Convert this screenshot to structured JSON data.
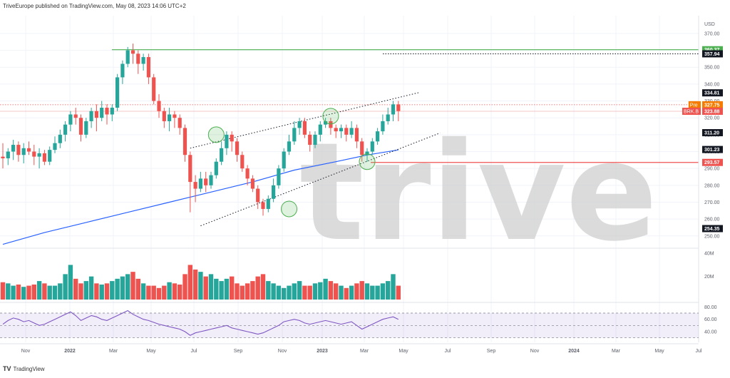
{
  "header": {
    "text": "TriveEurope published on TradingView.com, May 08, 2023 14:06 UTC+2"
  },
  "footer": {
    "logo": "TV",
    "brand": "TradingView"
  },
  "watermark": "trive",
  "chart_data": {
    "type": "candlestick",
    "currency": "USD",
    "symbol": "BRK.B",
    "y_range": [
      244,
      378
    ],
    "y_ticks": [
      370,
      360,
      350,
      340,
      330,
      320,
      310,
      300,
      290,
      280,
      270,
      260,
      250
    ],
    "x_labels": [
      "Nov",
      "2022",
      "Mar",
      "May",
      "Jul",
      "Sep",
      "Nov",
      "2023",
      "Mar",
      "May",
      "Jul",
      "Sep",
      "Nov",
      "2024",
      "Mar",
      "May",
      "Jul"
    ],
    "price_tags": [
      {
        "label": "360.37",
        "value": 360.37,
        "color": "#4caf50"
      },
      {
        "label": "357.94",
        "value": 357.94,
        "color": "#131722"
      },
      {
        "label": "334.81",
        "value": 334.81,
        "color": "#131722"
      },
      {
        "label": "327.75",
        "value": 327.75,
        "color": "#f57c00",
        "prefix": "Pre"
      },
      {
        "label": "323.88",
        "value": 323.88,
        "color": "#ef5350",
        "prefix": "BRK.B"
      },
      {
        "label": "311.20",
        "value": 311.2,
        "color": "#131722"
      },
      {
        "label": "301.23",
        "value": 301.23,
        "color": "#131722"
      },
      {
        "label": "293.57",
        "value": 293.57,
        "color": "#ef5350"
      },
      {
        "label": "254.35",
        "value": 254.35,
        "color": "#131722"
      }
    ],
    "candles": [
      [
        297,
        296,
        305,
        290
      ],
      [
        296,
        300,
        302,
        292
      ],
      [
        300,
        304,
        307,
        295
      ],
      [
        304,
        298,
        306,
        294
      ],
      [
        298,
        302,
        305,
        293
      ],
      [
        302,
        300,
        306,
        298
      ],
      [
        300,
        297,
        304,
        292
      ],
      [
        297,
        299,
        302,
        290
      ],
      [
        299,
        294,
        301,
        292
      ],
      [
        294,
        301,
        303,
        292
      ],
      [
        301,
        305,
        309,
        299
      ],
      [
        305,
        310,
        313,
        302
      ],
      [
        310,
        316,
        318,
        306
      ],
      [
        316,
        322,
        324,
        312
      ],
      [
        322,
        320,
        326,
        316
      ],
      [
        320,
        310,
        322,
        306
      ],
      [
        310,
        318,
        320,
        308
      ],
      [
        318,
        324,
        326,
        314
      ],
      [
        324,
        320,
        328,
        312
      ],
      [
        320,
        326,
        330,
        318
      ],
      [
        326,
        322,
        328,
        316
      ],
      [
        322,
        326,
        328,
        318
      ],
      [
        326,
        344,
        346,
        324
      ],
      [
        344,
        352,
        354,
        340
      ],
      [
        352,
        360,
        362,
        350
      ],
      [
        360,
        358,
        364,
        352
      ],
      [
        358,
        352,
        360,
        346
      ],
      [
        352,
        356,
        358,
        348
      ],
      [
        356,
        344,
        358,
        340
      ],
      [
        344,
        330,
        346,
        328
      ],
      [
        330,
        324,
        334,
        320
      ],
      [
        324,
        318,
        326,
        314
      ],
      [
        318,
        322,
        326,
        312
      ],
      [
        322,
        320,
        324,
        314
      ],
      [
        320,
        314,
        322,
        310
      ],
      [
        314,
        298,
        316,
        294
      ],
      [
        298,
        282,
        300,
        264
      ],
      [
        282,
        278,
        286,
        270
      ],
      [
        278,
        284,
        288,
        276
      ],
      [
        284,
        280,
        288,
        276
      ],
      [
        280,
        286,
        288,
        278
      ],
      [
        286,
        294,
        296,
        284
      ],
      [
        294,
        302,
        306,
        292
      ],
      [
        302,
        310,
        312,
        298
      ],
      [
        310,
        306,
        312,
        300
      ],
      [
        306,
        298,
        308,
        294
      ],
      [
        298,
        290,
        300,
        288
      ],
      [
        290,
        284,
        292,
        280
      ],
      [
        284,
        278,
        286,
        276
      ],
      [
        278,
        270,
        280,
        266
      ],
      [
        270,
        266,
        272,
        262
      ],
      [
        266,
        272,
        274,
        264
      ],
      [
        272,
        280,
        284,
        270
      ],
      [
        280,
        290,
        292,
        278
      ],
      [
        290,
        300,
        302,
        288
      ],
      [
        300,
        306,
        310,
        298
      ],
      [
        306,
        314,
        318,
        304
      ],
      [
        314,
        318,
        320,
        310
      ],
      [
        318,
        310,
        320,
        308
      ],
      [
        310,
        304,
        312,
        300
      ],
      [
        304,
        310,
        312,
        302
      ],
      [
        310,
        316,
        318,
        306
      ],
      [
        316,
        318,
        320,
        314
      ],
      [
        318,
        314,
        320,
        310
      ],
      [
        314,
        312,
        316,
        308
      ],
      [
        312,
        314,
        316,
        308
      ],
      [
        314,
        310,
        316,
        306
      ],
      [
        310,
        314,
        318,
        308
      ],
      [
        314,
        306,
        316,
        302
      ],
      [
        306,
        298,
        308,
        294
      ],
      [
        298,
        300,
        302,
        294
      ],
      [
        300,
        306,
        308,
        298
      ],
      [
        306,
        312,
        314,
        304
      ],
      [
        312,
        318,
        322,
        310
      ],
      [
        318,
        322,
        326,
        316
      ],
      [
        322,
        328,
        330,
        318
      ],
      [
        328,
        324,
        330,
        318
      ]
    ],
    "ma_line": [
      [
        0,
        245
      ],
      [
        8,
        252
      ],
      [
        16,
        258
      ],
      [
        24,
        264
      ],
      [
        32,
        270
      ],
      [
        40,
        276
      ],
      [
        48,
        282
      ],
      [
        56,
        289
      ],
      [
        64,
        294
      ],
      [
        70,
        298
      ],
      [
        76,
        301
      ]
    ],
    "channel_upper": [
      [
        36,
        302
      ],
      [
        80,
        335
      ]
    ],
    "channel_lower": [
      [
        38,
        256
      ],
      [
        84,
        311
      ]
    ],
    "circles": [
      [
        41,
        310
      ],
      [
        55,
        266
      ],
      [
        63,
        321
      ],
      [
        70,
        294
      ]
    ],
    "volume": {
      "label_ticks": [
        "40M",
        "20M"
      ],
      "values": [
        15,
        14,
        12,
        13,
        11,
        12,
        13,
        16,
        14,
        12,
        12,
        14,
        22,
        30,
        18,
        14,
        16,
        20,
        14,
        13,
        14,
        16,
        18,
        20,
        22,
        24,
        18,
        14,
        12,
        12,
        10,
        12,
        15,
        14,
        13,
        22,
        30,
        26,
        24,
        20,
        22,
        18,
        16,
        18,
        20,
        14,
        12,
        14,
        16,
        20,
        22,
        16,
        14,
        12,
        10,
        12,
        14,
        16,
        12,
        12,
        14,
        15,
        18,
        16,
        14,
        12,
        10,
        12,
        14,
        16,
        14,
        12,
        12,
        14,
        16,
        22,
        12
      ]
    },
    "rsi": {
      "label_ticks": [
        "80.00",
        "60.00",
        "40.00"
      ],
      "band": [
        30,
        70
      ],
      "values": [
        52,
        58,
        62,
        60,
        56,
        58,
        54,
        50,
        52,
        56,
        60,
        64,
        68,
        72,
        66,
        58,
        62,
        66,
        64,
        60,
        58,
        62,
        66,
        70,
        74,
        68,
        64,
        60,
        58,
        55,
        52,
        50,
        48,
        46,
        44,
        40,
        34,
        38,
        40,
        42,
        44,
        46,
        48,
        50,
        46,
        44,
        42,
        40,
        38,
        36,
        38,
        42,
        46,
        50,
        56,
        58,
        60,
        58,
        54,
        52,
        54,
        56,
        58,
        56,
        54,
        52,
        54,
        56,
        50,
        44,
        48,
        52,
        56,
        60,
        62,
        64,
        60
      ]
    }
  }
}
